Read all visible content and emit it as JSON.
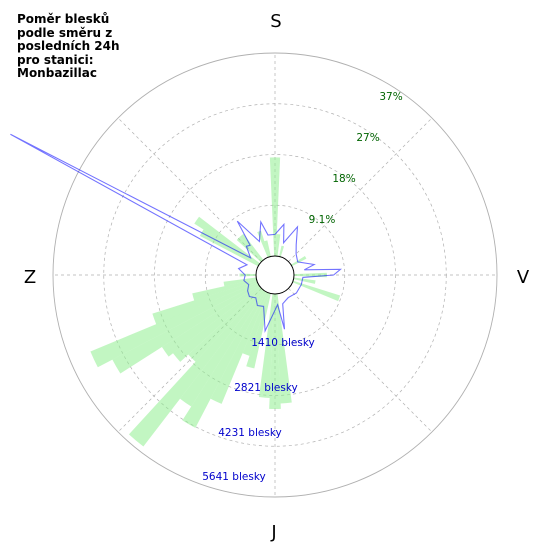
{
  "title": "Poměr blesků\npodle směru z\nposledních 24h\npro stanici:\nMonbazillac",
  "directions": {
    "north": "S",
    "east": "V",
    "south": "J",
    "west": "Z"
  },
  "colors": {
    "bars": "#90ee90",
    "line": "#0000ff",
    "pct_labels": "#006400",
    "count_labels": "#0000cc",
    "grid": "#b0b0b0"
  },
  "chart_data": {
    "type": "polar-bar",
    "title": "Poměr blesků podle směru z posledních 24h pro stanici: Monbazillac",
    "theta_zero": "north",
    "theta_direction": "clockwise",
    "percent_ticks": [
      "9.1%",
      "18%",
      "27%",
      "37%"
    ],
    "percent_tick_values": [
      9.1,
      18.25,
      27.4,
      36.5
    ],
    "count_ticks": [
      "1410 blesky",
      "2821 blesky",
      "4231 blesky",
      "5641 blesky"
    ],
    "count_tick_values": [
      1410,
      2821,
      4231,
      5641
    ],
    "percent_series": [
      {
        "angle": 0,
        "value": 18
      },
      {
        "angle": 5,
        "value": 4
      },
      {
        "angle": 15,
        "value": 2
      },
      {
        "angle": 60,
        "value": 3
      },
      {
        "angle": 90,
        "value": 6
      },
      {
        "angle": 100,
        "value": 4
      },
      {
        "angle": 110,
        "value": 9
      },
      {
        "angle": 175,
        "value": 20
      },
      {
        "angle": 180,
        "value": 21
      },
      {
        "angle": 185,
        "value": 19
      },
      {
        "angle": 195,
        "value": 14
      },
      {
        "angle": 200,
        "value": 12
      },
      {
        "angle": 205,
        "value": 22
      },
      {
        "angle": 210,
        "value": 28
      },
      {
        "angle": 215,
        "value": 25
      },
      {
        "angle": 220,
        "value": 36
      },
      {
        "angle": 225,
        "value": 18
      },
      {
        "angle": 230,
        "value": 20
      },
      {
        "angle": 235,
        "value": 21
      },
      {
        "angle": 240,
        "value": 30
      },
      {
        "angle": 245,
        "value": 33
      },
      {
        "angle": 250,
        "value": 20
      },
      {
        "angle": 255,
        "value": 12
      },
      {
        "angle": 260,
        "value": 6
      },
      {
        "angle": 270,
        "value": 3
      },
      {
        "angle": 300,
        "value": 12
      },
      {
        "angle": 305,
        "value": 14
      },
      {
        "angle": 315,
        "value": 6
      },
      {
        "angle": 320,
        "value": 6
      },
      {
        "angle": 340,
        "value": 5
      },
      {
        "angle": 345,
        "value": 3
      }
    ],
    "count_series": [
      {
        "angle": 0,
        "value": 600
      },
      {
        "angle": 10,
        "value": 900
      },
      {
        "angle": 15,
        "value": 400
      },
      {
        "angle": 25,
        "value": 950
      },
      {
        "angle": 35,
        "value": 500
      },
      {
        "angle": 45,
        "value": 300
      },
      {
        "angle": 60,
        "value": 200
      },
      {
        "angle": 75,
        "value": 600
      },
      {
        "angle": 80,
        "value": 300
      },
      {
        "angle": 85,
        "value": 1300
      },
      {
        "angle": 90,
        "value": 1100
      },
      {
        "angle": 95,
        "value": 250
      },
      {
        "angle": 110,
        "value": 250
      },
      {
        "angle": 130,
        "value": 250
      },
      {
        "angle": 150,
        "value": 200
      },
      {
        "angle": 165,
        "value": 300
      },
      {
        "angle": 170,
        "value": 1000
      },
      {
        "angle": 175,
        "value": 300
      },
      {
        "angle": 180,
        "value": 450
      },
      {
        "angle": 190,
        "value": 1050
      },
      {
        "angle": 200,
        "value": 400
      },
      {
        "angle": 210,
        "value": 450
      },
      {
        "angle": 220,
        "value": 300
      },
      {
        "angle": 230,
        "value": 400
      },
      {
        "angle": 240,
        "value": 350
      },
      {
        "angle": 250,
        "value": 250
      },
      {
        "angle": 260,
        "value": 350
      },
      {
        "angle": 270,
        "value": 300
      },
      {
        "angle": 280,
        "value": 500
      },
      {
        "angle": 290,
        "value": 300
      },
      {
        "angle": 298,
        "value": 7800
      },
      {
        "angle": 305,
        "value": 300
      },
      {
        "angle": 315,
        "value": 600
      },
      {
        "angle": 320,
        "value": 550
      },
      {
        "angle": 325,
        "value": 1300
      },
      {
        "angle": 335,
        "value": 500
      },
      {
        "angle": 345,
        "value": 1000
      },
      {
        "angle": 350,
        "value": 600
      }
    ],
    "grid": true
  }
}
